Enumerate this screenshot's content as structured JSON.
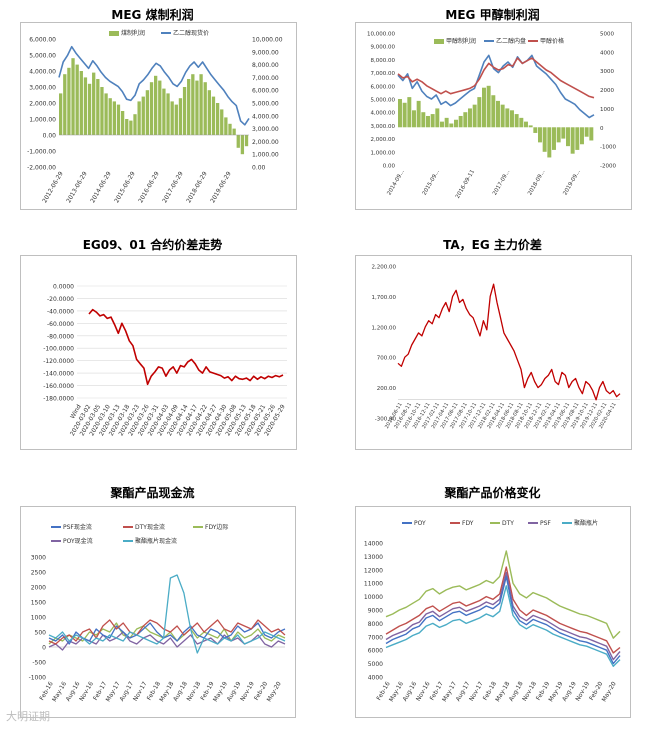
{
  "chart_data": [
    {
      "type": "bar+line",
      "title": "MEG 煤制利润",
      "legend": [
        "煤制利润",
        "乙二醇现货价"
      ],
      "y_left_ticks": [
        "6,000.00",
        "5,000.00",
        "4,000.00",
        "3,000.00",
        "2,000.00",
        "1,000.00",
        "0.00",
        "-1,000.00",
        "-2,000.00"
      ],
      "y_right_ticks": [
        "10,000.00",
        "9,000.00",
        "8,000.00",
        "7,000.00",
        "6,000.00",
        "5,000.00",
        "4,000.00",
        "3,000.00",
        "2,000.00",
        "1,000.00",
        "0.00"
      ],
      "x_ticks": [
        "2012-06-29",
        "2013-06-29",
        "2014-06-29",
        "2015-06-29",
        "2016-06-29",
        "2017-06-29",
        "2018-06-29",
        "2019-06-29"
      ],
      "ylim_left": [
        -2000,
        6000
      ],
      "ylim_right": [
        0,
        10000
      ],
      "colors": {
        "profit": "#9bbb59",
        "price": "#4f81bd"
      },
      "series": [
        {
          "name": "煤制利润",
          "axis": "left",
          "values": [
            2600,
            3800,
            4200,
            4800,
            4400,
            4000,
            3600,
            3200,
            3900,
            3500,
            3000,
            2600,
            2300,
            2100,
            1900,
            1500,
            1000,
            900,
            1300,
            2100,
            2400,
            2800,
            3300,
            3700,
            3400,
            2900,
            2600,
            2100,
            1900,
            2300,
            3000,
            3500,
            3800,
            3400,
            3800,
            3300,
            2800,
            2400,
            2000,
            1600,
            1100,
            700,
            400,
            -800,
            -1200,
            -700
          ]
        },
        {
          "name": "乙二醇现货价",
          "axis": "right",
          "values": [
            7000,
            8200,
            8700,
            9400,
            8900,
            8500,
            8100,
            7700,
            8300,
            7900,
            7400,
            7000,
            6700,
            6500,
            6300,
            5900,
            5300,
            5200,
            5600,
            6500,
            6800,
            7200,
            7700,
            8100,
            7900,
            7400,
            7000,
            6500,
            6300,
            6700,
            7400,
            7900,
            8200,
            7800,
            8200,
            7700,
            7200,
            6800,
            6400,
            6000,
            5500,
            5100,
            4800,
            3600,
            3300,
            3800
          ]
        }
      ]
    },
    {
      "type": "bar+line",
      "title": "MEG 甲醇制利润",
      "legend": [
        "甲醇制利润",
        "乙二醇内盘",
        "甲醇价格"
      ],
      "y_left_ticks": [
        "10,000.00",
        "9,000.00",
        "8,000.00",
        "7,000.00",
        "6,000.00",
        "5,000.00",
        "4,000.00",
        "3,000.00",
        "2,000.00",
        "1,000.00",
        "0.00"
      ],
      "y_right_ticks": [
        "5000",
        "4000",
        "3000",
        "2000",
        "1000",
        "0",
        "-1000",
        "-2000"
      ],
      "x_ticks": [
        "2014-09...",
        "2015-09...",
        "2016-09-11",
        "2017-09...",
        "2018-09...",
        "2019-09..."
      ],
      "ylim_left": [
        0,
        10000
      ],
      "ylim_right": [
        -2000,
        5000
      ],
      "colors": {
        "profit": "#9bbb59",
        "meg": "#4f81bd",
        "methanol": "#c0504d"
      },
      "series": [
        {
          "name": "甲醇制利润",
          "axis": "right",
          "values": [
            1500,
            1300,
            1600,
            900,
            1400,
            800,
            600,
            700,
            1000,
            300,
            500,
            200,
            400,
            600,
            800,
            1000,
            1200,
            1600,
            2100,
            2200,
            1700,
            1400,
            1200,
            1000,
            900,
            700,
            500,
            300,
            100,
            -300,
            -800,
            -1300,
            -1600,
            -1200,
            -800,
            -600,
            -1000,
            -1400,
            -1200,
            -900,
            -500,
            -700
          ]
        },
        {
          "name": "乙二醇内盘",
          "axis": "left",
          "values": [
            6800,
            6400,
            6900,
            5800,
            6300,
            5600,
            5200,
            5000,
            5300,
            4600,
            4800,
            4500,
            4700,
            5000,
            5300,
            5600,
            5800,
            6800,
            7800,
            8300,
            7300,
            7000,
            7500,
            7800,
            7400,
            8200,
            7700,
            7900,
            8300,
            7500,
            7200,
            6900,
            6500,
            6100,
            5500,
            5000,
            4800,
            4600,
            4200,
            3900,
            3600,
            3800
          ]
        },
        {
          "name": "甲醇价格",
          "axis": "left",
          "values": [
            6900,
            6600,
            6700,
            6300,
            6500,
            6300,
            6000,
            5800,
            5600,
            5400,
            5600,
            5400,
            5500,
            5600,
            5700,
            5800,
            6000,
            6500,
            7200,
            7700,
            7400,
            7200,
            7300,
            7600,
            7500,
            8100,
            7700,
            7900,
            8100,
            7800,
            7500,
            7200,
            7000,
            6700,
            6400,
            6200,
            6000,
            5800,
            5600,
            5400,
            5200,
            5100
          ]
        }
      ]
    },
    {
      "type": "line",
      "title": "EG09、01 合约价差走势",
      "y_ticks": [
        "0.0000",
        "-20.0000",
        "-40.0000",
        "-60.0000",
        "-80.0000",
        "-100.0000",
        "-120.0000",
        "-140.0000",
        "-160.0000",
        "-180.0000"
      ],
      "x_ticks": [
        "Wind",
        "2020-03-02",
        "2020-03-05",
        "2020-03-10",
        "2020-03-13",
        "2020-03-18",
        "2020-03-23",
        "2020-03-26",
        "2020-03-31",
        "2020-04-03",
        "2020-04-09",
        "2020-04-14",
        "2020-04-17",
        "2020-04-22",
        "2020-04-27",
        "2020-04-30",
        "2020-05-08",
        "2020-05-13",
        "2020-05-18",
        "2020-05-21",
        "2020-05-26",
        "2020-05-29"
      ],
      "ylim": [
        -180,
        0
      ],
      "colors": {
        "line": "#c00000"
      },
      "series": [
        {
          "name": "",
          "values": [
            -45,
            -38,
            -42,
            -48,
            -46,
            -52,
            -50,
            -62,
            -76,
            -60,
            -72,
            -88,
            -96,
            -118,
            -125,
            -132,
            -158,
            -145,
            -138,
            -130,
            -132,
            -145,
            -135,
            -130,
            -140,
            -128,
            -130,
            -122,
            -118,
            -125,
            -135,
            -140,
            -130,
            -138,
            -140,
            -142,
            -144,
            -148,
            -146,
            -152,
            -145,
            -149,
            -150,
            -148,
            -152,
            -145,
            -150,
            -146,
            -149,
            -145,
            -147,
            -144,
            -146,
            -143
          ]
        }
      ]
    },
    {
      "type": "line",
      "title": "TA，EG 主力价差",
      "y_ticks": [
        "2,200.00",
        "1,700.00",
        "1,200.00",
        "700.00",
        "200.00",
        "-300.00"
      ],
      "x_ticks": [
        "2016-06-11",
        "2016-08-11",
        "2016-10-11",
        "2016-12-11",
        "2017-02-11",
        "2017-04-11",
        "2017-06-11",
        "2017-08-11",
        "2017-10-11",
        "2017-12-11",
        "2018-02-11",
        "2018-04-11",
        "2018-06-11",
        "2018-08-11",
        "2018-10-11",
        "2018-12-11",
        "2019-02-11",
        "2019-04-11",
        "2019-06-11",
        "2019-08-11",
        "2019-10-11",
        "2019-12-11",
        "2020-02-11",
        "2020-04-11"
      ],
      "ylim": [
        -300,
        2200
      ],
      "colors": {
        "line": "#c00000"
      },
      "series": [
        {
          "name": "",
          "values": [
            600,
            550,
            700,
            750,
            900,
            1000,
            1100,
            1050,
            1200,
            1300,
            1250,
            1400,
            1350,
            1500,
            1600,
            1450,
            1700,
            1800,
            1600,
            1650,
            1500,
            1400,
            1350,
            1200,
            1050,
            1300,
            1150,
            1700,
            1900,
            1600,
            1350,
            1100,
            1000,
            900,
            800,
            650,
            500,
            200,
            350,
            450,
            300,
            200,
            250,
            350,
            400,
            500,
            300,
            250,
            450,
            400,
            200,
            300,
            350,
            200,
            100,
            300,
            250,
            150,
            0,
            200,
            300,
            150,
            100,
            150,
            50,
            100
          ]
        }
      ]
    },
    {
      "type": "line",
      "title": "聚酯产品现金流",
      "legend": [
        "PSF现金流",
        "DTY现金流",
        "FDY边际",
        "POY现金流",
        "聚酯瓶片现金流"
      ],
      "y_ticks": [
        "3000",
        "2500",
        "2000",
        "1500",
        "1000",
        "500",
        "0",
        "-500",
        "-1000"
      ],
      "x_ticks": [
        "Feb-16",
        "May-16",
        "Aug-16",
        "Nov-16",
        "Feb-17",
        "May-17",
        "Aug-17",
        "Nov-17",
        "Feb-18",
        "May-18",
        "Aug-18",
        "Nov-18",
        "Feb-19",
        "May-19",
        "Aug-19",
        "Nov-19",
        "Feb-20",
        "May-20"
      ],
      "ylim": [
        -1000,
        3000
      ],
      "colors": {
        "psf": "#4472c4",
        "dty": "#c0504d",
        "fdy": "#9bbb59",
        "poy": "#8064a2",
        "bottle": "#4bacc6"
      },
      "series": [
        {
          "name": "PSF现金流",
          "values": [
            300,
            200,
            400,
            100,
            500,
            300,
            200,
            600,
            400,
            300,
            700,
            500,
            300,
            400,
            600,
            800,
            500,
            300,
            400,
            200,
            500,
            700,
            400,
            300,
            600,
            500,
            300,
            400,
            700,
            500,
            600,
            800,
            400,
            300,
            500,
            600
          ]
        },
        {
          "name": "DTY现金流",
          "values": [
            200,
            100,
            300,
            400,
            200,
            500,
            600,
            300,
            700,
            900,
            600,
            800,
            500,
            400,
            700,
            900,
            800,
            600,
            500,
            700,
            400,
            600,
            800,
            500,
            700,
            900,
            600,
            500,
            800,
            700,
            600,
            900,
            700,
            500,
            600,
            400
          ]
        },
        {
          "name": "FDY边际",
          "values": [
            100,
            300,
            200,
            400,
            300,
            200,
            500,
            400,
            600,
            500,
            800,
            400,
            300,
            600,
            700,
            500,
            400,
            300,
            500,
            200,
            400,
            600,
            300,
            500,
            400,
            300,
            600,
            200,
            500,
            300,
            400,
            600,
            300,
            200,
            400,
            300
          ]
        },
        {
          "name": "POY现金流",
          "values": [
            0,
            100,
            -100,
            200,
            100,
            300,
            200,
            100,
            400,
            200,
            300,
            500,
            200,
            100,
            300,
            400,
            200,
            100,
            300,
            0,
            200,
            400,
            100,
            200,
            300,
            100,
            400,
            200,
            300,
            100,
            200,
            400,
            100,
            0,
            200,
            100
          ]
        },
        {
          "name": "聚酯瓶片现金流",
          "values": [
            400,
            300,
            500,
            200,
            400,
            300,
            100,
            300,
            200,
            400,
            300,
            200,
            500,
            400,
            300,
            200,
            100,
            300,
            2300,
            2400,
            1800,
            600,
            -200,
            300,
            200,
            100,
            300,
            200,
            400,
            100,
            200,
            300,
            500,
            400,
            300,
            200
          ]
        }
      ]
    },
    {
      "type": "line",
      "title": "聚酯产品价格变化",
      "legend": [
        "POY",
        "FDY",
        "DTY",
        "PSF",
        "聚酯瓶片"
      ],
      "y_ticks": [
        "14000",
        "13000",
        "12000",
        "11000",
        "10000",
        "9000",
        "8000",
        "7000",
        "6000",
        "5000",
        "4000"
      ],
      "x_ticks": [
        "Feb-16",
        "May-16",
        "Aug-16",
        "Nov-16",
        "Feb-17",
        "May-17",
        "Aug-17",
        "Nov-17",
        "Feb-18",
        "May-18",
        "Aug-18",
        "Nov-18",
        "Feb-19",
        "May-19",
        "Aug-19",
        "Nov-19",
        "Feb-20",
        "May-20"
      ],
      "ylim": [
        4000,
        14000
      ],
      "colors": {
        "poy": "#4472c4",
        "fdy": "#c0504d",
        "dty": "#9bbb59",
        "psf": "#8064a2",
        "bottle": "#4bacc6"
      },
      "series": [
        {
          "name": "POY",
          "values": [
            6500,
            6800,
            7000,
            7200,
            7600,
            7800,
            8400,
            8600,
            8200,
            8500,
            8800,
            8900,
            8600,
            8800,
            9000,
            9300,
            9100,
            9500,
            11500,
            9000,
            8200,
            7900,
            8300,
            8100,
            7900,
            7600,
            7300,
            7100,
            6900,
            6700,
            6600,
            6400,
            6200,
            6000,
            5000,
            5600
          ]
        },
        {
          "name": "FDY",
          "values": [
            7200,
            7500,
            7800,
            8000,
            8300,
            8600,
            9100,
            9300,
            8900,
            9200,
            9500,
            9600,
            9300,
            9500,
            9700,
            10000,
            9800,
            10200,
            12200,
            9800,
            9000,
            8600,
            9000,
            8800,
            8600,
            8300,
            8000,
            7800,
            7600,
            7400,
            7300,
            7100,
            6900,
            6700,
            5800,
            6200
          ]
        },
        {
          "name": "DTY",
          "values": [
            8500,
            8700,
            9000,
            9200,
            9500,
            9800,
            10400,
            10600,
            10200,
            10500,
            10700,
            10800,
            10500,
            10700,
            10900,
            11200,
            11000,
            11500,
            13400,
            11000,
            10200,
            9900,
            10300,
            10100,
            9900,
            9600,
            9300,
            9100,
            8900,
            8700,
            8600,
            8400,
            8200,
            8000,
            6900,
            7400
          ]
        },
        {
          "name": "PSF",
          "values": [
            6800,
            7100,
            7300,
            7500,
            7900,
            8100,
            8700,
            8900,
            8500,
            8800,
            9100,
            9200,
            8900,
            9100,
            9300,
            9600,
            9400,
            9800,
            11800,
            9300,
            8500,
            8200,
            8600,
            8400,
            8200,
            7900,
            7600,
            7400,
            7200,
            7000,
            6900,
            6700,
            6500,
            6300,
            5300,
            5900
          ]
        },
        {
          "name": "聚酯瓶片",
          "values": [
            6200,
            6400,
            6600,
            6800,
            7100,
            7300,
            7800,
            8000,
            7700,
            7900,
            8200,
            8300,
            8000,
            8200,
            8400,
            8700,
            8500,
            8900,
            10800,
            8600,
            7900,
            7600,
            7900,
            7700,
            7500,
            7200,
            7000,
            6800,
            6600,
            6400,
            6300,
            6100,
            5900,
            5700,
            4800,
            5300
          ]
        }
      ]
    }
  ],
  "watermark": "大明证期"
}
